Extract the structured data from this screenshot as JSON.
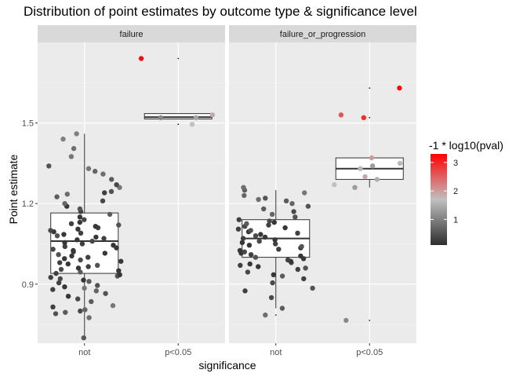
{
  "chart_data": {
    "type": "scatter",
    "title": "Distribution of point estimates by outcome type & significance level",
    "xlabel": "significance",
    "ylabel": "Point estimate",
    "categories": [
      "not",
      "p<0.05"
    ],
    "ylim": [
      0.68,
      1.8
    ],
    "yticks": [
      0.9,
      1.2,
      1.5
    ],
    "ytick_labels": [
      "0.9",
      "1.2",
      "1.5"
    ],
    "grid": true,
    "legend": {
      "title": "-1 * log10(pval)",
      "ticks": [
        1,
        2,
        3
      ],
      "tick_labels": [
        "1",
        "2",
        "3"
      ],
      "range": [
        0.1,
        3.3
      ],
      "colors": [
        "#2e2e2e",
        "#c0c0c0",
        "#ff0000"
      ],
      "placement": "right"
    },
    "panels": [
      {
        "label": "failure",
        "boxes": [
          {
            "category": "not",
            "q1": 0.94,
            "median": 1.06,
            "q3": 1.165,
            "whisker_low": 0.7,
            "whisker_high": 1.46,
            "outliers": []
          },
          {
            "category": "p<0.05",
            "q1": 1.515,
            "median": 1.522,
            "q3": 1.535,
            "whisker_low": 1.515,
            "whisker_high": 1.535,
            "outliers": [
              1.495,
              1.74
            ]
          }
        ],
        "points": {
          "not": [
            {
              "y": 0.7,
              "p": 0.55
            },
            {
              "y": 0.775,
              "p": 0.8
            },
            {
              "y": 0.79,
              "p": 0.5
            },
            {
              "y": 0.795,
              "p": 0.6
            },
            {
              "y": 0.8,
              "p": 0.4
            },
            {
              "y": 0.805,
              "p": 0.7
            },
            {
              "y": 0.815,
              "p": 0.3
            },
            {
              "y": 0.82,
              "p": 0.9
            },
            {
              "y": 0.835,
              "p": 0.6
            },
            {
              "y": 0.845,
              "p": 0.4
            },
            {
              "y": 0.855,
              "p": 0.2
            },
            {
              "y": 0.865,
              "p": 0.5
            },
            {
              "y": 0.875,
              "p": 0.7
            },
            {
              "y": 0.88,
              "p": 0.3
            },
            {
              "y": 0.885,
              "p": 0.9
            },
            {
              "y": 0.89,
              "p": 0.2
            },
            {
              "y": 0.895,
              "p": 0.5
            },
            {
              "y": 0.905,
              "p": 0.3
            },
            {
              "y": 0.91,
              "p": 0.6
            },
            {
              "y": 0.915,
              "p": 0.2
            },
            {
              "y": 0.92,
              "p": 0.4
            },
            {
              "y": 0.925,
              "p": 0.3
            },
            {
              "y": 0.93,
              "p": 0.5
            },
            {
              "y": 0.935,
              "p": 0.2
            },
            {
              "y": 0.94,
              "p": 0.3
            },
            {
              "y": 0.945,
              "p": 0.6
            },
            {
              "y": 0.95,
              "p": 0.2
            },
            {
              "y": 0.955,
              "p": 0.4
            },
            {
              "y": 0.96,
              "p": 0.2
            },
            {
              "y": 0.965,
              "p": 0.3
            },
            {
              "y": 0.97,
              "p": 0.5
            },
            {
              "y": 0.975,
              "p": 0.2
            },
            {
              "y": 0.98,
              "p": 0.3
            },
            {
              "y": 0.985,
              "p": 0.2
            },
            {
              "y": 0.99,
              "p": 0.4
            },
            {
              "y": 0.995,
              "p": 0.2
            },
            {
              "y": 1.0,
              "p": 0.3
            },
            {
              "y": 1.005,
              "p": 0.2
            },
            {
              "y": 1.01,
              "p": 0.5
            },
            {
              "y": 1.015,
              "p": 0.2
            },
            {
              "y": 1.02,
              "p": 0.3
            },
            {
              "y": 1.025,
              "p": 0.2
            },
            {
              "y": 1.03,
              "p": 0.4
            },
            {
              "y": 1.035,
              "p": 0.2
            },
            {
              "y": 1.04,
              "p": 0.3
            },
            {
              "y": 1.045,
              "p": 0.2
            },
            {
              "y": 1.05,
              "p": 0.3
            },
            {
              "y": 1.055,
              "p": 0.2
            },
            {
              "y": 1.06,
              "p": 0.4
            },
            {
              "y": 1.065,
              "p": 0.2
            },
            {
              "y": 1.07,
              "p": 0.3
            },
            {
              "y": 1.075,
              "p": 0.2
            },
            {
              "y": 1.08,
              "p": 0.5
            },
            {
              "y": 1.085,
              "p": 0.2
            },
            {
              "y": 1.09,
              "p": 0.3
            },
            {
              "y": 1.095,
              "p": 0.2
            },
            {
              "y": 1.1,
              "p": 0.4
            },
            {
              "y": 1.105,
              "p": 0.2
            },
            {
              "y": 1.11,
              "p": 0.3
            },
            {
              "y": 1.115,
              "p": 0.2
            },
            {
              "y": 1.12,
              "p": 0.5
            },
            {
              "y": 1.125,
              "p": 0.3
            },
            {
              "y": 1.13,
              "p": 0.2
            },
            {
              "y": 1.14,
              "p": 0.4
            },
            {
              "y": 1.15,
              "p": 0.2
            },
            {
              "y": 1.16,
              "p": 0.6
            },
            {
              "y": 1.17,
              "p": 0.3
            },
            {
              "y": 1.18,
              "p": 0.5
            },
            {
              "y": 1.19,
              "p": 0.2
            },
            {
              "y": 1.2,
              "p": 0.7
            },
            {
              "y": 1.21,
              "p": 0.4
            },
            {
              "y": 1.225,
              "p": 0.6
            },
            {
              "y": 1.235,
              "p": 0.8
            },
            {
              "y": 1.24,
              "p": 0.3
            },
            {
              "y": 1.245,
              "p": 0.5
            },
            {
              "y": 1.26,
              "p": 0.9
            },
            {
              "y": 1.27,
              "p": 0.4
            },
            {
              "y": 1.29,
              "p": 0.6
            },
            {
              "y": 1.31,
              "p": 0.8
            },
            {
              "y": 1.32,
              "p": 0.7
            },
            {
              "y": 1.33,
              "p": 0.9
            },
            {
              "y": 1.34,
              "p": 0.5
            },
            {
              "y": 1.375,
              "p": 0.9
            },
            {
              "y": 1.405,
              "p": 0.8
            },
            {
              "y": 1.44,
              "p": 1.0
            },
            {
              "y": 1.46,
              "p": 1.0
            }
          ],
          "p<0.05": [
            {
              "y": 1.495,
              "p": 1.7
            },
            {
              "y": 1.52,
              "p": 1.4
            },
            {
              "y": 1.52,
              "p": 1.1
            },
            {
              "y": 1.53,
              "p": 1.9
            },
            {
              "y": 1.74,
              "p": 3.2
            }
          ]
        }
      },
      {
        "label": "failure_or_progression",
        "boxes": [
          {
            "category": "not",
            "q1": 1.0,
            "median": 1.07,
            "q3": 1.14,
            "whisker_low": 0.81,
            "whisker_high": 1.25,
            "outliers": [
              0.785
            ]
          },
          {
            "category": "p<0.05",
            "q1": 1.29,
            "median": 1.33,
            "q3": 1.37,
            "whisker_low": 1.26,
            "whisker_high": 1.37,
            "outliers": [
              0.765,
              1.52,
              1.63
            ]
          }
        ],
        "points": {
          "not": [
            {
              "y": 0.785,
              "p": 0.8
            },
            {
              "y": 0.81,
              "p": 0.6
            },
            {
              "y": 0.85,
              "p": 0.4
            },
            {
              "y": 0.875,
              "p": 0.3
            },
            {
              "y": 0.885,
              "p": 0.5
            },
            {
              "y": 0.905,
              "p": 0.4
            },
            {
              "y": 0.92,
              "p": 0.3
            },
            {
              "y": 0.93,
              "p": 0.6
            },
            {
              "y": 0.935,
              "p": 0.2
            },
            {
              "y": 0.945,
              "p": 0.4
            },
            {
              "y": 0.955,
              "p": 0.3
            },
            {
              "y": 0.96,
              "p": 0.5
            },
            {
              "y": 0.965,
              "p": 0.2
            },
            {
              "y": 0.97,
              "p": 0.3
            },
            {
              "y": 0.975,
              "p": 0.2
            },
            {
              "y": 0.98,
              "p": 0.4
            },
            {
              "y": 0.985,
              "p": 0.2
            },
            {
              "y": 0.99,
              "p": 0.3
            },
            {
              "y": 0.995,
              "p": 0.2
            },
            {
              "y": 1.0,
              "p": 0.5
            },
            {
              "y": 1.005,
              "p": 0.2
            },
            {
              "y": 1.01,
              "p": 0.3
            },
            {
              "y": 1.015,
              "p": 0.2
            },
            {
              "y": 1.02,
              "p": 0.4
            },
            {
              "y": 1.025,
              "p": 0.2
            },
            {
              "y": 1.03,
              "p": 0.3
            },
            {
              "y": 1.035,
              "p": 0.2
            },
            {
              "y": 1.04,
              "p": 0.5
            },
            {
              "y": 1.045,
              "p": 0.2
            },
            {
              "y": 1.05,
              "p": 0.3
            },
            {
              "y": 1.055,
              "p": 0.2
            },
            {
              "y": 1.06,
              "p": 0.4
            },
            {
              "y": 1.065,
              "p": 0.2
            },
            {
              "y": 1.07,
              "p": 0.3
            },
            {
              "y": 1.075,
              "p": 0.2
            },
            {
              "y": 1.08,
              "p": 0.4
            },
            {
              "y": 1.085,
              "p": 0.2
            },
            {
              "y": 1.09,
              "p": 0.3
            },
            {
              "y": 1.095,
              "p": 0.2
            },
            {
              "y": 1.1,
              "p": 0.5
            },
            {
              "y": 1.105,
              "p": 0.3
            },
            {
              "y": 1.11,
              "p": 0.2
            },
            {
              "y": 1.115,
              "p": 0.4
            },
            {
              "y": 1.12,
              "p": 0.3
            },
            {
              "y": 1.125,
              "p": 0.6
            },
            {
              "y": 1.13,
              "p": 0.2
            },
            {
              "y": 1.135,
              "p": 0.4
            },
            {
              "y": 1.14,
              "p": 0.3
            },
            {
              "y": 1.15,
              "p": 0.5
            },
            {
              "y": 1.16,
              "p": 0.7
            },
            {
              "y": 1.17,
              "p": 0.4
            },
            {
              "y": 1.18,
              "p": 0.6
            },
            {
              "y": 1.19,
              "p": 0.5
            },
            {
              "y": 1.2,
              "p": 0.7
            },
            {
              "y": 1.21,
              "p": 0.6
            },
            {
              "y": 1.215,
              "p": 0.8
            },
            {
              "y": 1.22,
              "p": 0.5
            },
            {
              "y": 1.23,
              "p": 0.7
            },
            {
              "y": 1.24,
              "p": 0.9
            },
            {
              "y": 1.25,
              "p": 0.6
            },
            {
              "y": 1.26,
              "p": 0.8
            }
          ],
          "p<0.05": [
            {
              "y": 0.765,
              "p": 1.1
            },
            {
              "y": 1.26,
              "p": 1.3
            },
            {
              "y": 1.27,
              "p": 1.7
            },
            {
              "y": 1.29,
              "p": 1.5
            },
            {
              "y": 1.3,
              "p": 1.9
            },
            {
              "y": 1.33,
              "p": 1.6
            },
            {
              "y": 1.34,
              "p": 1.3
            },
            {
              "y": 1.35,
              "p": 1.8
            },
            {
              "y": 1.37,
              "p": 2.0
            },
            {
              "y": 1.52,
              "p": 2.9
            },
            {
              "y": 1.53,
              "p": 2.6
            },
            {
              "y": 1.63,
              "p": 3.2
            }
          ]
        }
      }
    ]
  }
}
